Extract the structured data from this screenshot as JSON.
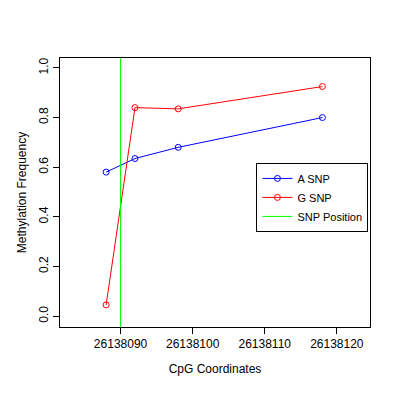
{
  "chart_data": {
    "type": "line",
    "x_label": "CpG Coordinates",
    "y_label": "Methylation Frequency",
    "marker": "circle-open",
    "legend": "right",
    "grid": false,
    "xlim": [
      26138081.6,
      26138124.6
    ],
    "xticks": [
      26138090,
      26138100,
      26138110,
      26138120
    ],
    "ylim": [
      -0.044,
      1.04
    ],
    "yticks": [
      {
        "value": 0,
        "label": "0.0"
      },
      {
        "value": 0.2,
        "label": "0.2"
      },
      {
        "value": 0.4,
        "label": "0.4"
      },
      {
        "value": 0.6,
        "label": "0.6"
      },
      {
        "value": 0.8,
        "label": "0.8"
      },
      {
        "value": 1,
        "label": "1.0"
      }
    ],
    "series": [
      {
        "name": "A SNP",
        "color": "#0000ff",
        "x": [
          26138088,
          26138092,
          26138098,
          26138118
        ],
        "values": [
          0.58,
          0.635,
          0.68,
          0.8
        ]
      },
      {
        "name": "G SNP",
        "color": "#ff0000",
        "x": [
          26138088,
          26138092,
          26138098,
          26138118
        ],
        "values": [
          0.045,
          0.84,
          0.835,
          0.925
        ]
      }
    ],
    "vlines": [
      {
        "name": "SNP Position",
        "color": "#00ff00",
        "x": 26138090
      }
    ]
  }
}
